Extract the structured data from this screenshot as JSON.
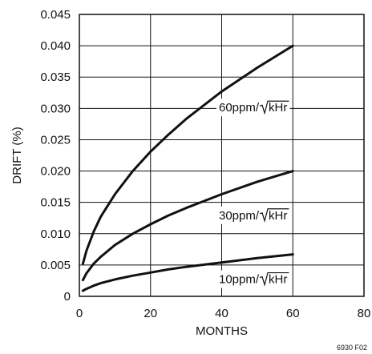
{
  "chart_data": {
    "type": "line",
    "title": "",
    "xlabel": "MONTHS",
    "ylabel": "DRIFT (%)",
    "xlim": [
      0,
      80
    ],
    "ylim": [
      0,
      0.045
    ],
    "x_ticks": [
      "0",
      "20",
      "40",
      "60",
      "80"
    ],
    "y_ticks": [
      "0",
      "0.005",
      "0.010",
      "0.015",
      "0.020",
      "0.025",
      "0.030",
      "0.035",
      "0.040",
      "0.045"
    ],
    "grid": true,
    "x": [
      1,
      2,
      4,
      6,
      10,
      15,
      20,
      25,
      30,
      40,
      50,
      60
    ],
    "series": [
      {
        "name": "60ppm/√kHr",
        "label_prefix": "60ppm/",
        "label_root": "kHr",
        "values": [
          0.0052,
          0.0073,
          0.0103,
          0.0127,
          0.0163,
          0.02,
          0.0231,
          0.0258,
          0.0283,
          0.0327,
          0.0365,
          0.04
        ]
      },
      {
        "name": "30ppm/√kHr",
        "label_prefix": "30ppm/",
        "label_root": "kHr",
        "values": [
          0.0026,
          0.0037,
          0.0052,
          0.0063,
          0.0082,
          0.01,
          0.0115,
          0.0129,
          0.0141,
          0.0163,
          0.0183,
          0.02
        ]
      },
      {
        "name": "10ppm/√kHr",
        "label_prefix": "10ppm/",
        "label_root": "kHr",
        "values": [
          0.0009,
          0.0012,
          0.0017,
          0.0021,
          0.0027,
          0.0033,
          0.0038,
          0.0043,
          0.0047,
          0.0054,
          0.0061,
          0.0067
        ]
      }
    ],
    "footnote": "6930 F02"
  }
}
